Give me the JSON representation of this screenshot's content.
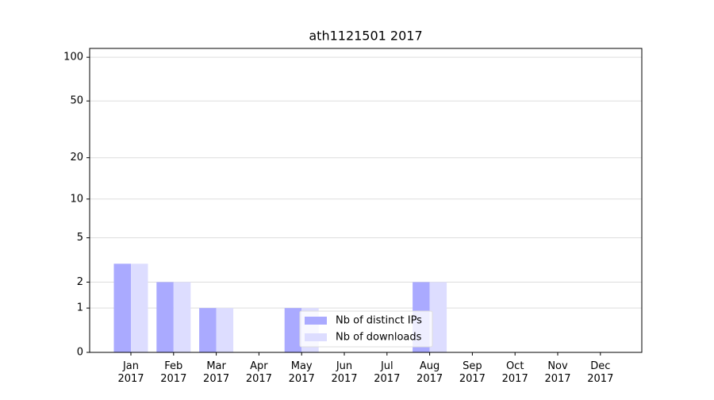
{
  "chart_data": {
    "type": "bar",
    "title": "ath1121501 2017",
    "categories": [
      "Jan 2017",
      "Feb 2017",
      "Mar 2017",
      "Apr 2017",
      "May 2017",
      "Jun 2017",
      "Jul 2017",
      "Aug 2017",
      "Sep 2017",
      "Oct 2017",
      "Nov 2017",
      "Dec 2017"
    ],
    "series": [
      {
        "name": "Nb of distinct IPs",
        "color": "#aaaaff",
        "values": [
          3,
          2,
          1,
          0,
          1,
          0,
          0,
          2,
          0,
          0,
          0,
          0
        ]
      },
      {
        "name": "Nb of downloads",
        "color": "#ddddff",
        "values": [
          3,
          2,
          1,
          0,
          1,
          0,
          0,
          2,
          0,
          0,
          0,
          0
        ]
      }
    ],
    "yscale": "symlog",
    "ylim": [
      0,
      115
    ],
    "yticks": [
      0,
      1,
      2,
      5,
      10,
      20,
      50,
      100
    ],
    "grid": true,
    "legend": "lower center"
  }
}
